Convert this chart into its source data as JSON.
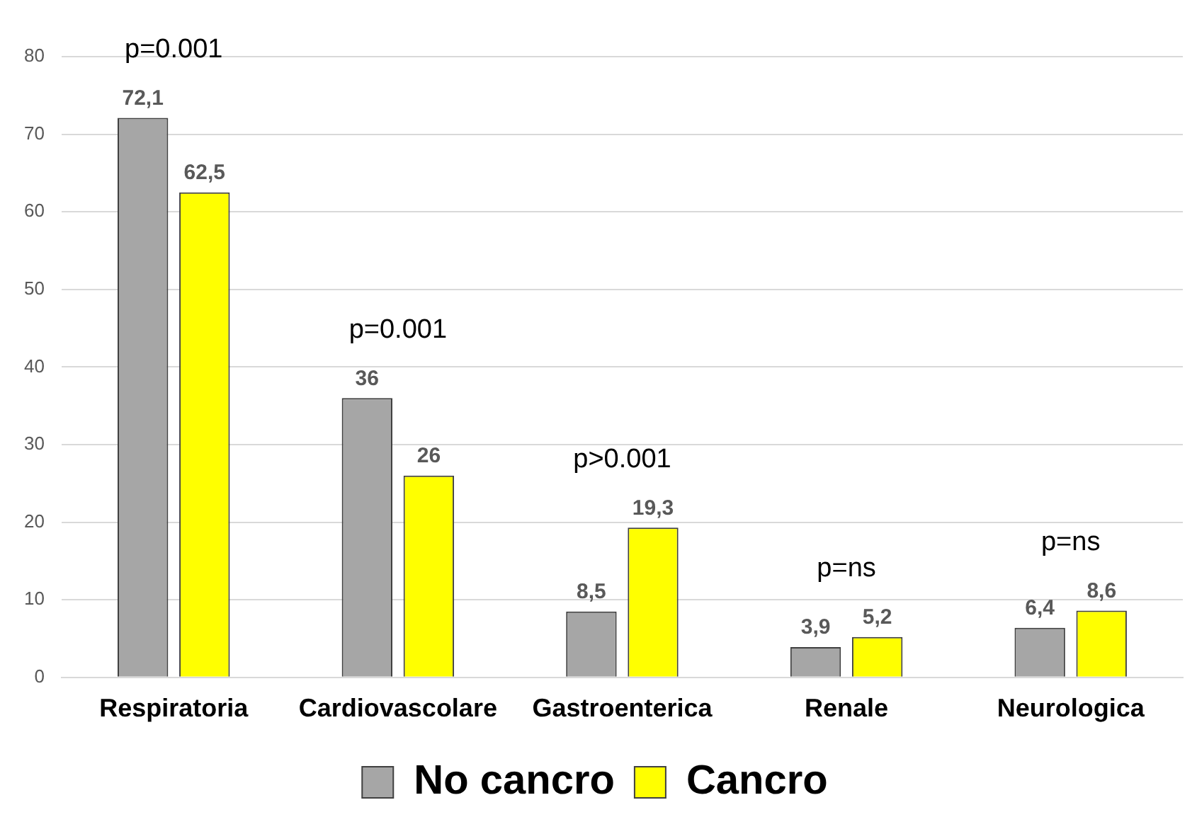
{
  "chart_data": {
    "type": "bar",
    "categories": [
      "Respiratoria",
      "Cardiovascolare",
      "Gastroenterica",
      "Renale",
      "Neurologica"
    ],
    "series": [
      {
        "name": "No cancro",
        "color": "#a6a6a6",
        "values": [
          72.1,
          36,
          8.5,
          3.9,
          6.4
        ]
      },
      {
        "name": "Cancro",
        "color": "#ffff00",
        "values": [
          62.5,
          26,
          19.3,
          5.2,
          8.6
        ]
      }
    ],
    "ylim": [
      0,
      80
    ],
    "yticks": [
      0,
      10,
      20,
      30,
      40,
      50,
      60,
      70,
      80
    ],
    "grid": "y",
    "legend": "bottom",
    "value_labels": [
      [
        "72,1",
        "36",
        "8,5",
        "3,9",
        "6,4"
      ],
      [
        "62,5",
        "26",
        "19,3",
        "5,2",
        "8,6"
      ]
    ],
    "annotations": [
      "p=0.001",
      "p=0.001",
      "p>0.001",
      "p=ns",
      "p=ns"
    ]
  }
}
